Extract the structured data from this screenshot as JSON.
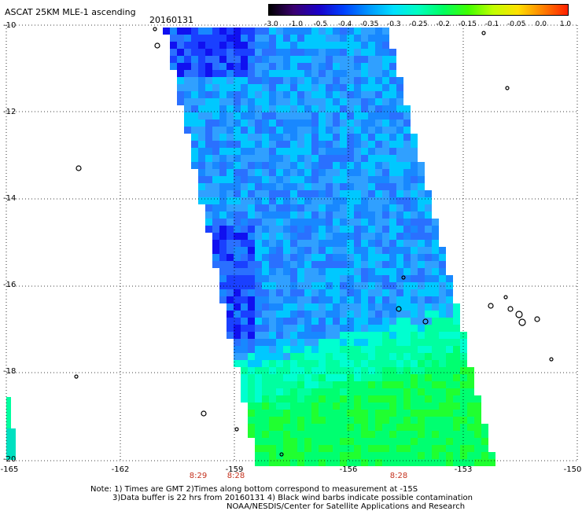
{
  "header": {
    "title": "ASCAT 25KM MLE-1 ascending",
    "date": "20160131"
  },
  "colorbar": {
    "labels": [
      "-3.0",
      "-1.0",
      "-0.5",
      "-0.4",
      "-0.35",
      "-0.3",
      "-0.25",
      "-0.2",
      "-0.15",
      "-0.1",
      "-0.05",
      "0.0",
      "1.0"
    ],
    "colors": [
      "#000000",
      "#3a0070",
      "#1a00c8",
      "#0040ff",
      "#0096ff",
      "#00e0ff",
      "#00ffc0",
      "#00ff60",
      "#40ff00",
      "#c0ff00",
      "#ffe000",
      "#ff8000",
      "#ff2000"
    ]
  },
  "axes": {
    "y_ticks": [
      "-10",
      "-12",
      "-14",
      "-16",
      "-18",
      "-20"
    ],
    "x_ticks": [
      "-165",
      "-162",
      "-159",
      "-156",
      "-153",
      "-150"
    ]
  },
  "times": [
    "8:29",
    "8:28",
    "8:28"
  ],
  "notes": {
    "line1": "Note: 1) Times are GMT 2)Times along bottom correspond to measurement at -15S",
    "line2": "3)Data buffer is 22 hrs from 20160131 4) Black wind barbs indicate possible contamination",
    "line3": "NOAA/NESDIS/Center for Satellite Applications and Research"
  }
}
